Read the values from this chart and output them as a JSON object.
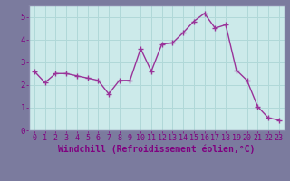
{
  "x": [
    0,
    1,
    2,
    3,
    4,
    5,
    6,
    7,
    8,
    9,
    10,
    11,
    12,
    13,
    14,
    15,
    16,
    17,
    18,
    19,
    20,
    21,
    22,
    23
  ],
  "y": [
    2.6,
    2.1,
    2.5,
    2.5,
    2.4,
    2.3,
    2.2,
    1.6,
    2.2,
    2.2,
    3.6,
    2.6,
    3.8,
    3.85,
    4.3,
    4.8,
    5.15,
    4.5,
    4.65,
    2.65,
    2.2,
    1.05,
    0.55,
    0.45
  ],
  "line_color": "#993399",
  "marker": "+",
  "marker_size": 4,
  "xlabel": "Windchill (Refroidissement éolien,°C)",
  "xlabel_fontsize": 7,
  "xlim": [
    -0.5,
    23.5
  ],
  "ylim": [
    0,
    5.5
  ],
  "yticks": [
    0,
    1,
    2,
    3,
    4,
    5
  ],
  "xtick_labels": [
    "0",
    "1",
    "2",
    "3",
    "4",
    "5",
    "6",
    "7",
    "8",
    "9",
    "10",
    "11",
    "12",
    "13",
    "14",
    "15",
    "16",
    "17",
    "18",
    "19",
    "20",
    "21",
    "22",
    "23"
  ],
  "grid_color": "#b0d8d8",
  "bg_color": "#cceaea",
  "tick_fontsize": 6,
  "line_width": 1.0,
  "fig_bg": "#7b7b9e",
  "spine_color": "#8888aa",
  "label_color": "#800080",
  "tick_color": "#800080"
}
